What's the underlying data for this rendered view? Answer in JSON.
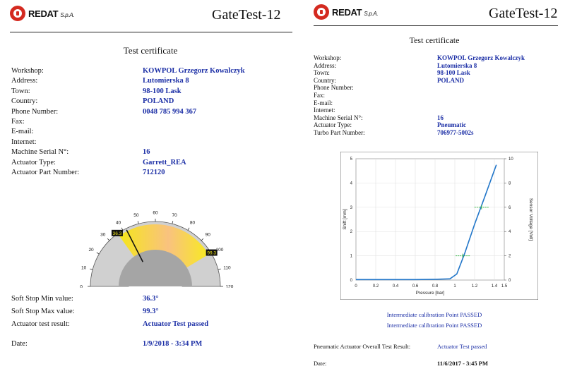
{
  "brand": {
    "name": "REDAT",
    "suffix": "S.p.A."
  },
  "left": {
    "title": "GateTest-12",
    "cert_title": "Test certificate",
    "fields": [
      {
        "label": "Workshop:",
        "value": "KOWPOL Grzegorz Kowalczyk"
      },
      {
        "label": "Address:",
        "value": "Lutomierska 8"
      },
      {
        "label": "Town:",
        "value": "98-100 Lask"
      },
      {
        "label": "Country:",
        "value": "POLAND"
      },
      {
        "label": "Phone Number:",
        "value": "0048 785 994 367"
      },
      {
        "label": "Fax:",
        "value": ""
      },
      {
        "label": "E-mail:",
        "value": ""
      },
      {
        "label": "Internet:",
        "value": ""
      },
      {
        "label": "Machine Serial N°:",
        "value": "16"
      },
      {
        "label": "Actuator Type:",
        "value": "Garrett_REA"
      },
      {
        "label": "Actuator Part Number:",
        "value": "712120"
      }
    ],
    "gauge": {
      "ticks": [
        "0",
        "10",
        "20",
        "30",
        "40",
        "50",
        "60",
        "70",
        "80",
        "90",
        "100",
        "110",
        "120"
      ],
      "min_marker": "36.3",
      "max_marker": "99.3",
      "min_value": 36.3,
      "max_value": 99.3,
      "needle_value": 42,
      "colors": {
        "band_start": "#f5e61a",
        "band_mid": "#f9c27f",
        "band_end": "#f7ea20",
        "dial": "#d0d0d0",
        "hub": "#a5a5a5"
      }
    },
    "summary": [
      {
        "label": "Soft Stop Min value:",
        "value": "36.3°"
      },
      {
        "label": "Soft Stop Max value:",
        "value": "99.3°"
      },
      {
        "label": "Actuator test result:",
        "value": "Actuator Test passed"
      },
      {
        "label": "Date:",
        "value": "1/9/2018 - 3:34 PM"
      }
    ]
  },
  "right": {
    "title": "GateTest-12",
    "cert_title": "Test certificate",
    "fields": [
      {
        "label": "Workshop:",
        "value": "KOWPOL Grzegorz Kowalczyk"
      },
      {
        "label": "Address:",
        "value": "Lutomierska 8"
      },
      {
        "label": "Town:",
        "value": "98-100 Lask"
      },
      {
        "label": "Country:",
        "value": "POLAND"
      },
      {
        "label": "Phone Number:",
        "value": ""
      },
      {
        "label": "Fax:",
        "value": ""
      },
      {
        "label": "E-mail:",
        "value": ""
      },
      {
        "label": "Internet:",
        "value": ""
      },
      {
        "label": "Machine Serial N°:",
        "value": "16"
      },
      {
        "label": "Actuator Type:",
        "value": "Pneumatic"
      },
      {
        "label": "Turbo Part Number:",
        "value": "706977-5002s"
      }
    ],
    "calibration": [
      "Intermediate calibration Point PASSED",
      "Intermediate calibration Point PASSED"
    ],
    "overall_label": "Pneumatic Actuator Overall Test Result:",
    "overall_value": "Actuator Test passed",
    "date_label": "Date:",
    "date_value": "11/6/2017 - 3:45 PM"
  },
  "chart_data": {
    "type": "line",
    "title": "",
    "xlabel": "Pressure [bar]",
    "ylabel": "Shift [mm]",
    "y2label": "Sensor Voltage [Volt]",
    "xlim": [
      0,
      1.5
    ],
    "ylim": [
      0,
      5
    ],
    "y2lim": [
      0,
      10
    ],
    "xticks": [
      "0",
      "0.2",
      "0.4",
      "0.6",
      "0.8",
      "1",
      "1.2",
      "1.4",
      "1.5"
    ],
    "yticks": [
      "0",
      "1",
      "2",
      "3",
      "4",
      "5"
    ],
    "y2ticks": [
      "0",
      "2",
      "4",
      "6",
      "8",
      "10"
    ],
    "grid": true,
    "series": [
      {
        "x": [
          0,
          0.2,
          0.4,
          0.6,
          0.8,
          0.95,
          1.02,
          1.1,
          1.2,
          1.3,
          1.38,
          1.42
        ],
        "y": [
          0.02,
          0.02,
          0.02,
          0.02,
          0.03,
          0.05,
          0.25,
          1.1,
          2.3,
          3.4,
          4.3,
          4.75
        ],
        "color": "#2176c9"
      }
    ],
    "markers": [
      {
        "x": 1.08,
        "y": 1.0,
        "color": "#3ab54a"
      },
      {
        "x": 1.27,
        "y": 3.0,
        "color": "#3ab54a"
      }
    ]
  }
}
